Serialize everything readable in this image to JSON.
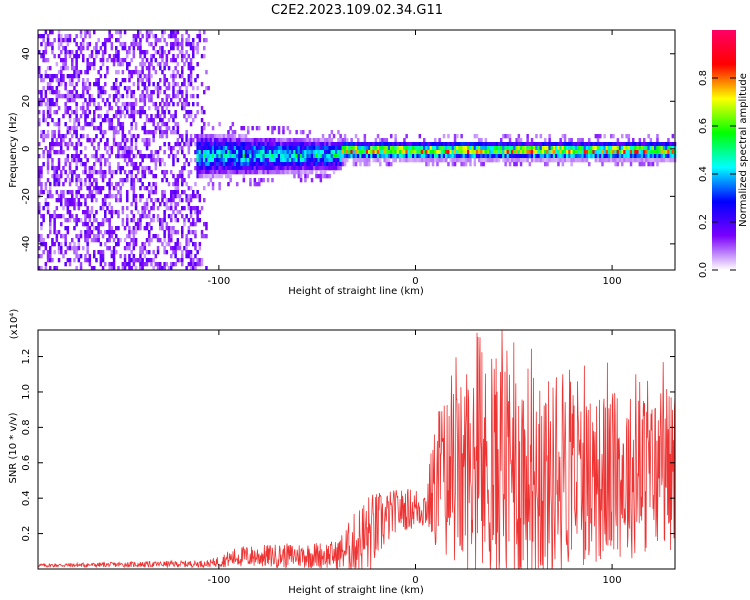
{
  "title": "C2E2.2023.109.02.34.G11",
  "chart_data": [
    {
      "type": "heatmap",
      "name": "spectrogram",
      "xlabel": "Height of straight line (km)",
      "ylabel": "Frequency (Hz)",
      "xlim": [
        -192,
        132
      ],
      "ylim": [
        -51,
        50
      ],
      "x_ticks": [
        -100,
        0,
        100
      ],
      "y_ticks": [
        -40,
        -20,
        0,
        20,
        40
      ],
      "colorbar": {
        "label": "Normalized spectral amplitude",
        "range": [
          0.0,
          1.0
        ],
        "ticks": [
          0.0,
          0.2,
          0.4,
          0.6,
          0.8
        ],
        "colormap": [
          "#ffffff",
          "#7a00ff",
          "#0000ff",
          "#00ffff",
          "#00ff00",
          "#ffff00",
          "#ff0000",
          "#ff0066"
        ]
      },
      "regions": [
        {
          "label": "noise",
          "x_range": [
            -192,
            -105
          ],
          "freq_range": [
            -50,
            50
          ],
          "amplitude": 0.1
        },
        {
          "label": "transition",
          "x_range": [
            -112,
            -38
          ],
          "freq_center": 0,
          "freq_halfwidth": 8,
          "amplitude": 0.4
        },
        {
          "label": "signal",
          "x_range": [
            -38,
            132
          ],
          "freq_center": 0,
          "freq_halfwidth": 3,
          "amplitude": 0.9
        }
      ]
    },
    {
      "type": "line",
      "name": "snr",
      "xlabel": "Height of straight line (km)",
      "ylabel": "SNR (10 * v/v)",
      "y_multiplier": "(x10⁴)",
      "xlim": [
        -192,
        132
      ],
      "ylim": [
        0,
        1.35
      ],
      "x_ticks": [
        -100,
        0,
        100
      ],
      "y_ticks": [
        0.2,
        0.4,
        0.6,
        0.8,
        1.0,
        1.2
      ],
      "color": "#ee3333",
      "series": [
        {
          "name": "SNR",
          "envelope": [
            {
              "x": -192,
              "base": 0.02,
              "amp": 0.01
            },
            {
              "x": -105,
              "base": 0.03,
              "amp": 0.02
            },
            {
              "x": -90,
              "base": 0.07,
              "amp": 0.06
            },
            {
              "x": -40,
              "base": 0.08,
              "amp": 0.08
            },
            {
              "x": -25,
              "base": 0.18,
              "amp": 0.25
            },
            {
              "x": -10,
              "base": 0.33,
              "amp": 0.12
            },
            {
              "x": 5,
              "base": 0.35,
              "amp": 0.12
            },
            {
              "x": 12,
              "base": 0.5,
              "amp": 0.45
            },
            {
              "x": 45,
              "base": 0.55,
              "amp": 0.7
            },
            {
              "x": 80,
              "base": 0.5,
              "amp": 0.5
            },
            {
              "x": 132,
              "base": 0.55,
              "amp": 0.45
            }
          ],
          "peaks": [
            {
              "x": 13,
              "y": 0.65
            },
            {
              "x": 26,
              "y": 1.1
            },
            {
              "x": 44,
              "y": 1.35
            },
            {
              "x": 50,
              "y": 1.28
            },
            {
              "x": 55,
              "y": 0.95
            },
            {
              "x": 75,
              "y": 1.1
            },
            {
              "x": 100,
              "y": 0.95
            },
            {
              "x": 112,
              "y": 1.1
            },
            {
              "x": 127,
              "y": 0.85
            }
          ]
        }
      ]
    }
  ]
}
